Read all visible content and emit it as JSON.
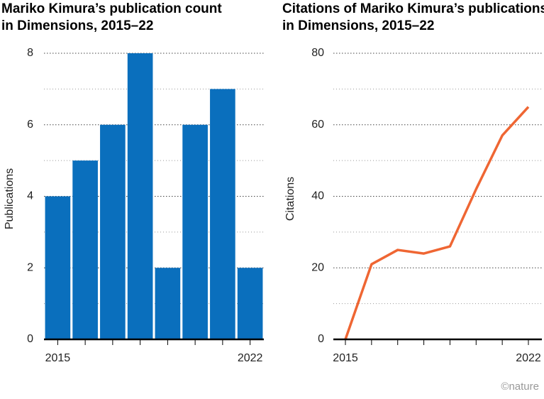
{
  "chart_data": [
    {
      "type": "bar",
      "title": "Mariko Kimura’s publication count in Dimensions, 2015–22",
      "y_label": "Publications",
      "categories": [
        "2015",
        null,
        null,
        null,
        null,
        null,
        null,
        "2022"
      ],
      "values": [
        4,
        5,
        6,
        8,
        2,
        6,
        7,
        2
      ],
      "color": "#0a6fbd",
      "ylim": [
        0,
        8
      ],
      "yticks": [
        0,
        2,
        4,
        6,
        8
      ],
      "minor_yticks": [
        1,
        3,
        5,
        7
      ],
      "grid": true
    },
    {
      "type": "line",
      "title": "Citations of Mariko Kimura’s publications in Dimensions, 2015–22",
      "y_label": "Citations",
      "categories": [
        "2015",
        null,
        null,
        null,
        null,
        null,
        null,
        "2022"
      ],
      "values": [
        0,
        21,
        25,
        24,
        26,
        42,
        57,
        65
      ],
      "color": "#ef6633",
      "ylim": [
        0,
        80
      ],
      "yticks": [
        0,
        20,
        40,
        60,
        80
      ],
      "minor_yticks": [
        10,
        30,
        50,
        70
      ],
      "grid": true
    }
  ],
  "footer": "©nature"
}
